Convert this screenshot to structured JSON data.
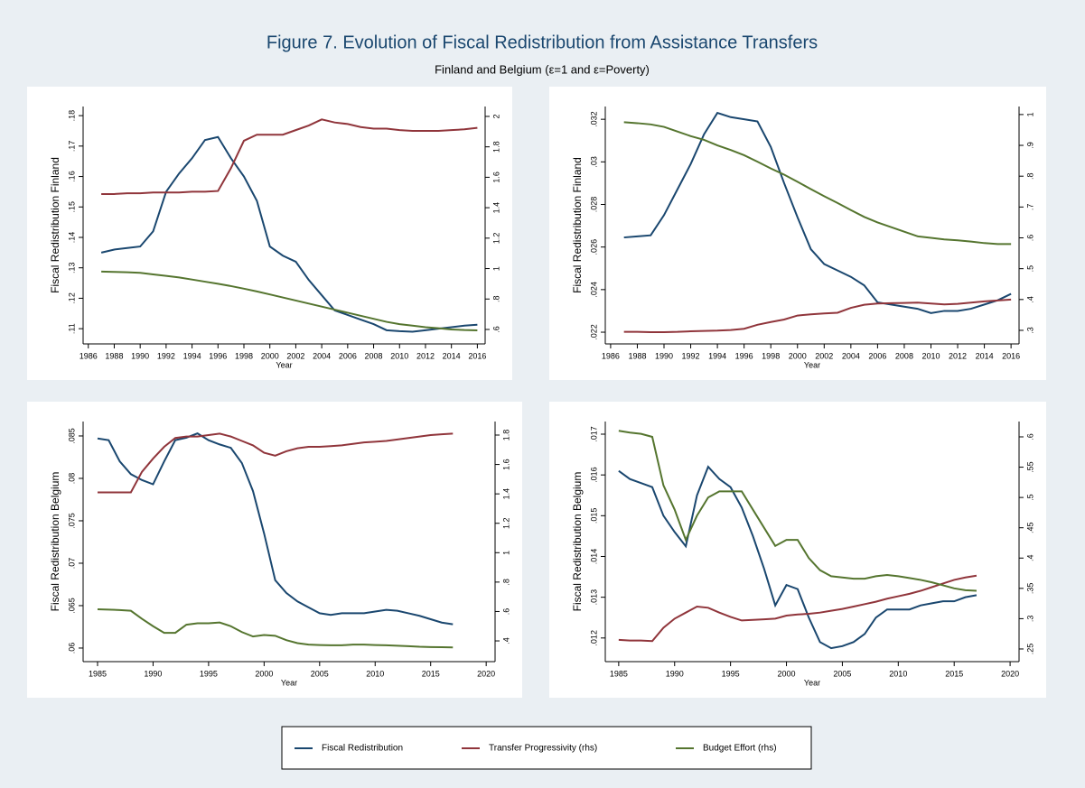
{
  "title": "Figure 7. Evolution of Fiscal Redistribution from Assistance Transfers",
  "subtitle": "Finland and Belgium (ε=1 and ε=Poverty)",
  "chart_data": [
    {
      "type": "line",
      "xlabel": "Year",
      "ylabel": "Fiscal Redistribution Finland",
      "x": [
        1987,
        1988,
        1989,
        1990,
        1991,
        1992,
        1993,
        1994,
        1995,
        1996,
        1997,
        1998,
        1999,
        2000,
        2001,
        2002,
        2003,
        2004,
        2005,
        2006,
        2007,
        2008,
        2009,
        2010,
        2011,
        2012,
        2013,
        2014,
        2015,
        2016
      ],
      "xlim": [
        1985.6,
        2016.6
      ],
      "xticks": [
        1986,
        1988,
        1990,
        1992,
        1994,
        1996,
        1998,
        2000,
        2002,
        2004,
        2006,
        2008,
        2010,
        2012,
        2014,
        2016
      ],
      "ylim": [
        0.105,
        0.183
      ],
      "yticks": [
        {
          "value": 0.11,
          "label": ".11"
        },
        {
          "value": 0.12,
          "label": ".12"
        },
        {
          "value": 0.13,
          "label": ".13"
        },
        {
          "value": 0.14,
          "label": ".14"
        },
        {
          "value": 0.15,
          "label": ".15"
        },
        {
          "value": 0.16,
          "label": ".16"
        },
        {
          "value": 0.17,
          "label": ".17"
        },
        {
          "value": 0.18,
          "label": ".18"
        }
      ],
      "y2lim": [
        0.505,
        2.065
      ],
      "y2ticks": [
        {
          "value": 0.6,
          "label": ".6"
        },
        {
          "value": 0.8,
          "label": ".8"
        },
        1,
        1.2,
        1.4,
        1.6,
        1.8,
        2
      ],
      "series": [
        {
          "name": "Fiscal Redistribution",
          "color": "#1a476f",
          "values": [
            0.135,
            0.136,
            0.1365,
            0.137,
            0.142,
            0.155,
            0.161,
            0.166,
            0.172,
            0.173,
            0.166,
            0.16,
            0.152,
            0.137,
            0.134,
            0.132,
            0.126,
            0.121,
            0.116,
            0.1145,
            0.113,
            0.1115,
            0.1095,
            0.1092,
            0.109,
            0.1095,
            0.11,
            0.1105,
            0.111,
            0.1113
          ]
        },
        {
          "name": "Transfer Progressivity (rhs)",
          "color": "#90353b",
          "axis": "y2",
          "values": [
            1.49,
            1.49,
            1.495,
            1.495,
            1.5,
            1.5,
            1.5,
            1.505,
            1.505,
            1.51,
            1.66,
            1.84,
            1.88,
            1.88,
            1.88,
            1.91,
            1.94,
            1.98,
            1.96,
            1.95,
            1.93,
            1.92,
            1.92,
            1.91,
            1.905,
            1.905,
            1.905,
            1.91,
            1.915,
            1.925
          ]
        },
        {
          "name": "Budget Effort (rhs)",
          "color": "#55752f",
          "axis": "y2",
          "values": [
            0.98,
            0.978,
            0.976,
            0.972,
            0.962,
            0.952,
            0.942,
            0.928,
            0.914,
            0.9,
            0.885,
            0.868,
            0.85,
            0.83,
            0.81,
            0.79,
            0.77,
            0.75,
            0.73,
            0.71,
            0.69,
            0.67,
            0.65,
            0.635,
            0.625,
            0.615,
            0.608,
            0.6,
            0.596,
            0.594
          ]
        }
      ]
    },
    {
      "type": "line",
      "xlabel": "Year",
      "ylabel": "Fiscal Redistribution Finland",
      "x": [
        1987,
        1988,
        1989,
        1990,
        1991,
        1992,
        1993,
        1994,
        1995,
        1996,
        1997,
        1998,
        1999,
        2000,
        2001,
        2002,
        2003,
        2004,
        2005,
        2006,
        2007,
        2008,
        2009,
        2010,
        2011,
        2012,
        2013,
        2014,
        2015,
        2016
      ],
      "xlim": [
        1985.6,
        2016.6
      ],
      "xticks": [
        1986,
        1988,
        1990,
        1992,
        1994,
        1996,
        1998,
        2000,
        2002,
        2004,
        2006,
        2008,
        2010,
        2012,
        2014,
        2016
      ],
      "ylim": [
        0.02145,
        0.0326
      ],
      "yticks": [
        {
          "value": 0.022,
          "label": ".022"
        },
        {
          "value": 0.024,
          "label": ".024"
        },
        {
          "value": 0.026,
          "label": ".026"
        },
        {
          "value": 0.028,
          "label": ".028"
        },
        {
          "value": 0.03,
          "label": ".03"
        },
        {
          "value": 0.032,
          "label": ".032"
        }
      ],
      "y2lim": [
        0.256,
        1.026
      ],
      "y2ticks": [
        {
          "value": 0.3,
          "label": ".3"
        },
        {
          "value": 0.4,
          "label": ".4"
        },
        {
          "value": 0.5,
          "label": ".5"
        },
        {
          "value": 0.6,
          "label": ".6"
        },
        {
          "value": 0.7,
          "label": ".7"
        },
        {
          "value": 0.8,
          "label": ".8"
        },
        {
          "value": 0.9,
          "label": ".9"
        },
        1
      ],
      "series": [
        {
          "color": "#1a476f",
          "values": [
            0.02645,
            0.0265,
            0.02655,
            0.0275,
            0.0287,
            0.0299,
            0.0313,
            0.0323,
            0.0321,
            0.032,
            0.0319,
            0.0307,
            0.029,
            0.0274,
            0.0259,
            0.0252,
            0.0249,
            0.0246,
            0.0242,
            0.0234,
            0.0233,
            0.0232,
            0.0231,
            0.0229,
            0.023,
            0.023,
            0.0231,
            0.0233,
            0.0235,
            0.0238
          ]
        },
        {
          "color": "#90353b",
          "axis": "y2",
          "values": [
            0.295,
            0.295,
            0.294,
            0.294,
            0.295,
            0.297,
            0.298,
            0.299,
            0.301,
            0.305,
            0.318,
            0.327,
            0.335,
            0.348,
            0.352,
            0.355,
            0.357,
            0.373,
            0.383,
            0.387,
            0.388,
            0.389,
            0.39,
            0.387,
            0.384,
            0.386,
            0.39,
            0.394,
            0.397,
            0.4
          ]
        },
        {
          "color": "#55752f",
          "axis": "y2",
          "values": [
            0.975,
            0.972,
            0.968,
            0.96,
            0.945,
            0.93,
            0.918,
            0.9,
            0.885,
            0.868,
            0.847,
            0.825,
            0.805,
            0.782,
            0.758,
            0.735,
            0.713,
            0.69,
            0.668,
            0.65,
            0.635,
            0.62,
            0.605,
            0.6,
            0.595,
            0.592,
            0.588,
            0.583,
            0.58,
            0.58
          ]
        }
      ]
    },
    {
      "type": "line",
      "xlabel": "Year",
      "ylabel": "Fiscal Redistribution Belgium",
      "x": [
        1985,
        1986,
        1987,
        1988,
        1989,
        1990,
        1991,
        1992,
        1993,
        1994,
        1995,
        1996,
        1997,
        1998,
        1999,
        2000,
        2001,
        2002,
        2003,
        2004,
        2005,
        2006,
        2007,
        2008,
        2009,
        2010,
        2011,
        2012,
        2013,
        2014,
        2015,
        2016,
        2017
      ],
      "xlim": [
        1983.7,
        2020.8
      ],
      "xticks": [
        1985,
        1990,
        1995,
        2000,
        2005,
        2010,
        2015,
        2020
      ],
      "ylim": [
        0.0584,
        0.0867
      ],
      "yticks": [
        {
          "value": 0.06,
          "label": ".06"
        },
        {
          "value": 0.065,
          "label": ".065"
        },
        {
          "value": 0.07,
          "label": ".07"
        },
        {
          "value": 0.075,
          "label": ".075"
        },
        {
          "value": 0.08,
          "label": ".08"
        },
        {
          "value": 0.085,
          "label": ".085"
        }
      ],
      "y2lim": [
        0.259,
        1.892
      ],
      "y2ticks": [
        {
          "value": 0.4,
          "label": ".4"
        },
        {
          "value": 0.6,
          "label": ".6"
        },
        {
          "value": 0.8,
          "label": ".8"
        },
        1,
        1.2,
        1.4,
        1.6,
        1.8
      ],
      "series": [
        {
          "color": "#1a476f",
          "values": [
            0.0847,
            0.0845,
            0.082,
            0.0805,
            0.0798,
            0.0793,
            0.082,
            0.0845,
            0.0848,
            0.0853,
            0.0845,
            0.084,
            0.0836,
            0.0818,
            0.0785,
            0.0735,
            0.068,
            0.0665,
            0.0655,
            0.0648,
            0.0641,
            0.0639,
            0.0641,
            0.0641,
            0.0641,
            0.0643,
            0.0645,
            0.0644,
            0.0641,
            0.0638,
            0.0634,
            0.063,
            0.0628
          ]
        },
        {
          "color": "#90353b",
          "axis": "y2",
          "values": [
            1.41,
            1.41,
            1.41,
            1.41,
            1.55,
            1.64,
            1.72,
            1.78,
            1.79,
            1.79,
            1.8,
            1.81,
            1.79,
            1.76,
            1.73,
            1.68,
            1.66,
            1.69,
            1.71,
            1.72,
            1.72,
            1.725,
            1.73,
            1.74,
            1.75,
            1.755,
            1.76,
            1.77,
            1.78,
            1.79,
            1.8,
            1.805,
            1.81
          ]
        },
        {
          "color": "#55752f",
          "axis": "y2",
          "values": [
            0.615,
            0.613,
            0.61,
            0.605,
            0.55,
            0.5,
            0.455,
            0.455,
            0.51,
            0.52,
            0.52,
            0.525,
            0.5,
            0.46,
            0.43,
            0.44,
            0.435,
            0.405,
            0.385,
            0.375,
            0.372,
            0.37,
            0.37,
            0.375,
            0.375,
            0.372,
            0.37,
            0.367,
            0.364,
            0.36,
            0.358,
            0.357,
            0.356
          ]
        }
      ]
    },
    {
      "type": "line",
      "xlabel": "Year",
      "ylabel": "Fiscal Redistribution Belgium",
      "x": [
        1985,
        1986,
        1987,
        1988,
        1989,
        1990,
        1991,
        1992,
        1993,
        1994,
        1995,
        1996,
        1997,
        1998,
        1999,
        2000,
        2001,
        2002,
        2003,
        2004,
        2005,
        2006,
        2007,
        2008,
        2009,
        2010,
        2011,
        2012,
        2013,
        2014,
        2015,
        2016,
        2017
      ],
      "xlim": [
        1983.8,
        2020.8
      ],
      "xticks": [
        1985,
        1990,
        1995,
        2000,
        2005,
        2010,
        2015,
        2020
      ],
      "ylim": [
        0.01142,
        0.01731
      ],
      "yticks": [
        {
          "value": 0.012,
          "label": ".012"
        },
        {
          "value": 0.013,
          "label": ".013"
        },
        {
          "value": 0.014,
          "label": ".014"
        },
        {
          "value": 0.015,
          "label": ".015"
        },
        {
          "value": 0.016,
          "label": ".016"
        },
        {
          "value": 0.017,
          "label": ".017"
        }
      ],
      "y2lim": [
        0.2291,
        0.6253
      ],
      "y2ticks": [
        {
          "value": 0.25,
          "label": ".25"
        },
        {
          "value": 0.3,
          "label": ".3"
        },
        {
          "value": 0.35,
          "label": ".35"
        },
        {
          "value": 0.4,
          "label": ".4"
        },
        {
          "value": 0.45,
          "label": ".45"
        },
        {
          "value": 0.5,
          "label": ".5"
        },
        {
          "value": 0.55,
          "label": ".55"
        },
        {
          "value": 0.6,
          "label": ".6"
        }
      ],
      "series": [
        {
          "color": "#1a476f",
          "values": [
            0.0161,
            0.0159,
            0.0158,
            0.0157,
            0.015,
            0.0146,
            0.01425,
            0.0155,
            0.0162,
            0.0159,
            0.0157,
            0.0152,
            0.0145,
            0.0137,
            0.0128,
            0.0133,
            0.0132,
            0.0125,
            0.0119,
            0.01175,
            0.0118,
            0.0119,
            0.0121,
            0.0125,
            0.0127,
            0.0127,
            0.0127,
            0.0128,
            0.01285,
            0.0129,
            0.0129,
            0.013,
            0.01305
          ]
        },
        {
          "color": "#90353b",
          "axis": "y2",
          "values": [
            0.265,
            0.264,
            0.264,
            0.263,
            0.285,
            0.3,
            0.31,
            0.32,
            0.318,
            0.31,
            0.303,
            0.297,
            0.298,
            0.299,
            0.3,
            0.305,
            0.307,
            0.308,
            0.31,
            0.313,
            0.316,
            0.32,
            0.324,
            0.328,
            0.333,
            0.337,
            0.341,
            0.346,
            0.352,
            0.358,
            0.364,
            0.368,
            0.371
          ]
        },
        {
          "color": "#55752f",
          "axis": "y2",
          "values": [
            0.61,
            0.607,
            0.605,
            0.6,
            0.52,
            0.48,
            0.43,
            0.47,
            0.5,
            0.51,
            0.51,
            0.51,
            0.48,
            0.45,
            0.42,
            0.43,
            0.43,
            0.4,
            0.38,
            0.37,
            0.368,
            0.366,
            0.366,
            0.37,
            0.372,
            0.37,
            0.367,
            0.364,
            0.36,
            0.355,
            0.35,
            0.347,
            0.346
          ]
        }
      ]
    }
  ]
}
